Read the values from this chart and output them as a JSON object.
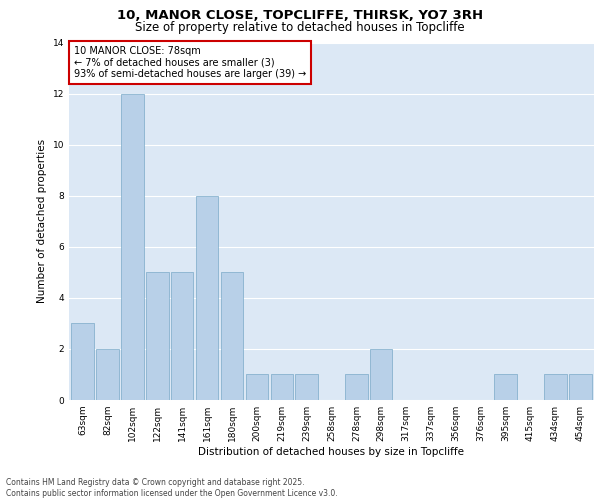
{
  "title_line1": "10, MANOR CLOSE, TOPCLIFFE, THIRSK, YO7 3RH",
  "title_line2": "Size of property relative to detached houses in Topcliffe",
  "xlabel": "Distribution of detached houses by size in Topcliffe",
  "ylabel": "Number of detached properties",
  "categories": [
    "63sqm",
    "82sqm",
    "102sqm",
    "122sqm",
    "141sqm",
    "161sqm",
    "180sqm",
    "200sqm",
    "219sqm",
    "239sqm",
    "258sqm",
    "278sqm",
    "298sqm",
    "317sqm",
    "337sqm",
    "356sqm",
    "376sqm",
    "395sqm",
    "415sqm",
    "434sqm",
    "454sqm"
  ],
  "values": [
    3,
    2,
    12,
    5,
    5,
    8,
    5,
    1,
    1,
    1,
    0,
    1,
    2,
    0,
    0,
    0,
    0,
    1,
    0,
    1,
    1
  ],
  "bar_color": "#b8d0e8",
  "bar_edge_color": "#7aaac8",
  "ylim": [
    0,
    14
  ],
  "yticks": [
    0,
    2,
    4,
    6,
    8,
    10,
    12,
    14
  ],
  "background_color": "#dce8f5",
  "annotation_text": "10 MANOR CLOSE: 78sqm\n← 7% of detached houses are smaller (3)\n93% of semi-detached houses are larger (39) →",
  "annotation_box_facecolor": "#ffffff",
  "annotation_box_edgecolor": "#cc0000",
  "footer_text": "Contains HM Land Registry data © Crown copyright and database right 2025.\nContains public sector information licensed under the Open Government Licence v3.0.",
  "grid_color": "#ffffff",
  "title_fontsize": 9.5,
  "subtitle_fontsize": 8.5,
  "axis_label_fontsize": 7.5,
  "tick_fontsize": 6.5,
  "annotation_fontsize": 7,
  "footer_fontsize": 5.5
}
